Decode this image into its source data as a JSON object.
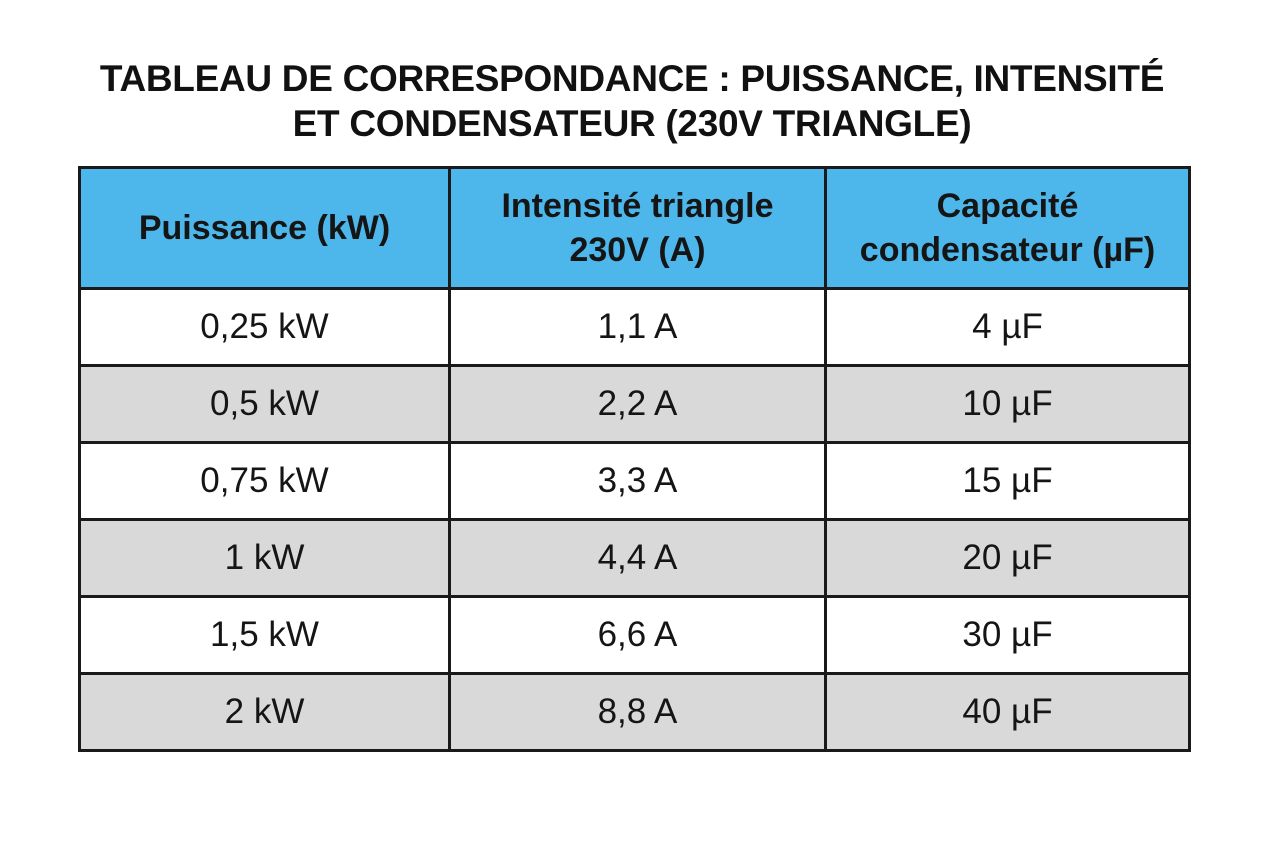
{
  "title": {
    "line1": "TABLEAU DE CORRESPONDANCE : PUISSANCE, INTENSITÉ",
    "line2": "ET CONDENSATEUR (230V TRIANGLE)"
  },
  "colors": {
    "header_bg": "#4db6ea",
    "row_alt_bg": "#d9d9d9",
    "row_bg": "#ffffff",
    "border": "#1a1a1a"
  },
  "table": {
    "headers": [
      "Puissance (kW)",
      "Intensité triangle 230V (A)",
      "Capacité condensateur (µF)"
    ],
    "rows": [
      [
        "0,25 kW",
        "1,1 A",
        "4 µF"
      ],
      [
        "0,5 kW",
        "2,2 A",
        "10 µF"
      ],
      [
        "0,75 kW",
        "3,3 A",
        "15 µF"
      ],
      [
        "1 kW",
        "4,4 A",
        "20 µF"
      ],
      [
        "1,5 kW",
        "6,6 A",
        "30 µF"
      ],
      [
        "2 kW",
        "8,8 A",
        "40 µF"
      ]
    ]
  }
}
